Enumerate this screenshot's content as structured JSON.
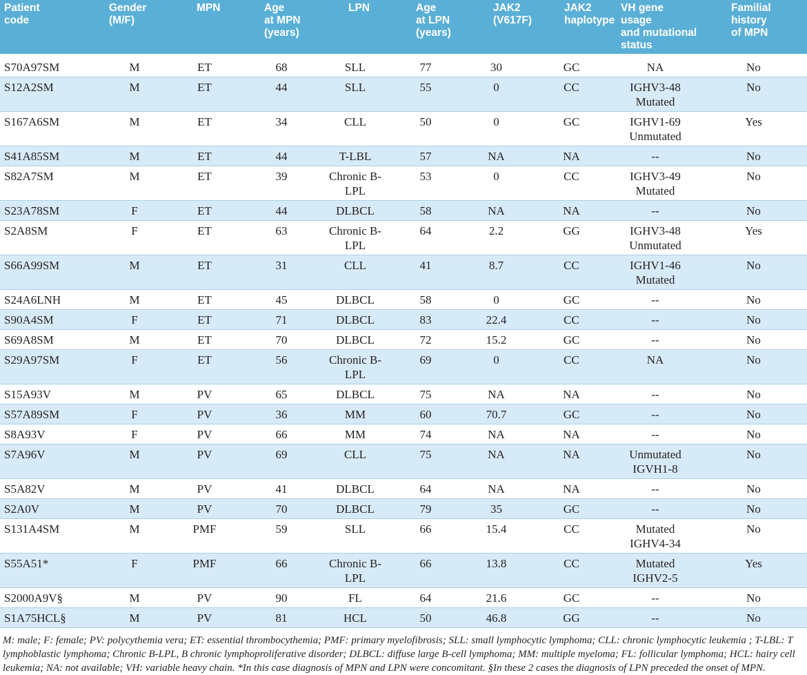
{
  "table": {
    "header": [
      "Patient\ncode",
      "Gender\n(M/F)",
      "MPN",
      "Age\nat MPN\n(years)",
      "LPN",
      "Age\nat LPN\n(years)",
      "JAK2\n(V617F)",
      "JAK2\nhaplotype",
      "VH gene usage\nand mutational\nstatus",
      "Familial\nhistory\nof MPN"
    ],
    "rows": [
      [
        "S70A97SM",
        "M",
        "ET",
        "68",
        "SLL",
        "77",
        "30",
        "GC",
        "NA",
        "No"
      ],
      [
        "S12A2SM",
        "M",
        "ET",
        "44",
        "SLL",
        "55",
        "0",
        "CC",
        "IGHV3-48\nMutated",
        "No"
      ],
      [
        "S167A6SM",
        "M",
        "ET",
        "34",
        "CLL",
        "50",
        "0",
        "GC",
        "IGHV1-69\nUnmutated",
        "Yes"
      ],
      [
        "S41A85SM",
        "M",
        "ET",
        "44",
        "T-LBL",
        "57",
        "NA",
        "NA",
        "--",
        "No"
      ],
      [
        "S82A7SM",
        "M",
        "ET",
        "39",
        "Chronic B-LPL",
        "53",
        "0",
        "CC",
        "IGHV3-49\nMutated",
        "No"
      ],
      [
        "S23A78SM",
        "F",
        "ET",
        "44",
        "DLBCL",
        "58",
        "NA",
        "NA",
        "--",
        "No"
      ],
      [
        "S2A8SM",
        "F",
        "ET",
        "63",
        "Chronic B-LPL",
        "64",
        "2.2",
        "GG",
        "IGHV3-48\nUnmutated",
        "Yes"
      ],
      [
        "S66A99SM",
        "M",
        "ET",
        "31",
        "CLL",
        "41",
        "8.7",
        "CC",
        "IGHV1-46\nMutated",
        "No"
      ],
      [
        "S24A6LNH",
        "M",
        "ET",
        "45",
        "DLBCL",
        "58",
        "0",
        "GC",
        "--",
        "No"
      ],
      [
        "S90A4SM",
        "F",
        "ET",
        "71",
        "DLBCL",
        "83",
        "22.4",
        "CC",
        "--",
        "No"
      ],
      [
        "S69A8SM",
        "M",
        "ET",
        "70",
        "DLBCL",
        "72",
        "15.2",
        "GC",
        "--",
        "No"
      ],
      [
        "S29A97SM",
        "F",
        "ET",
        "56",
        "Chronic B-LPL",
        "69",
        "0",
        "CC",
        "NA",
        "No"
      ],
      [
        "S15A93V",
        "M",
        "PV",
        "65",
        "DLBCL",
        "75",
        "NA",
        "NA",
        "--",
        "No"
      ],
      [
        "S57A89SM",
        "F",
        "PV",
        "36",
        "MM",
        "60",
        "70.7",
        "GC",
        "--",
        "No"
      ],
      [
        "S8A93V",
        "F",
        "PV",
        "66",
        "MM",
        "74",
        "NA",
        "NA",
        "--",
        "No"
      ],
      [
        "S7A96V",
        "M",
        "PV",
        "69",
        "CLL",
        "75",
        "NA",
        "NA",
        "Unmutated\nIGVH1-8",
        "No"
      ],
      [
        "S5A82V",
        "M",
        "PV",
        "41",
        "DLBCL",
        "64",
        "NA",
        "NA",
        "--",
        "No"
      ],
      [
        "S2A0V",
        "M",
        "PV",
        "70",
        "DLBCL",
        "79",
        "35",
        "GC",
        "--",
        "No"
      ],
      [
        "S131A4SM",
        "M",
        "PMF",
        "59",
        "SLL",
        "66",
        "15.4",
        "CC",
        "Mutated\nIGHV4-34",
        "No"
      ],
      [
        "S55A51*",
        "F",
        "PMF",
        "66",
        "Chronic B-LPL",
        "66",
        "13.8",
        "CC",
        "Mutated\nIGHV2-5",
        "Yes"
      ],
      [
        "S2000A9V§",
        "M",
        "PV",
        "90",
        "FL",
        "64",
        "21.6",
        "GC",
        "--",
        "No"
      ],
      [
        "S1A75HCL§",
        "M",
        "PV",
        "81",
        "HCL",
        "50",
        "46.8",
        "GG",
        "--",
        "No"
      ]
    ],
    "footnote": "M: male; F: female; PV: polycythemia vera; ET: essential thrombocythemia; PMF: primary myelofibrosis; SLL: small lymphocytic lymphoma; CLL: chronic lymphocytic leukemia ; T-LBL: T lymphoblastic lymphoma; Chronic B-LPL, B chronic lymphoproliferative disorder; DLBCL: diffuse large B-cell lymphoma; MM: multiple myeloma; FL: follicular lymphoma; HCL: hairy cell leukemia; NA: not available; VH: variable heavy chain. *In this case diagnosis of MPN and LPN were concomitant. §In these 2 cases the diagnosis of LPN preceded the onset of MPN."
  }
}
